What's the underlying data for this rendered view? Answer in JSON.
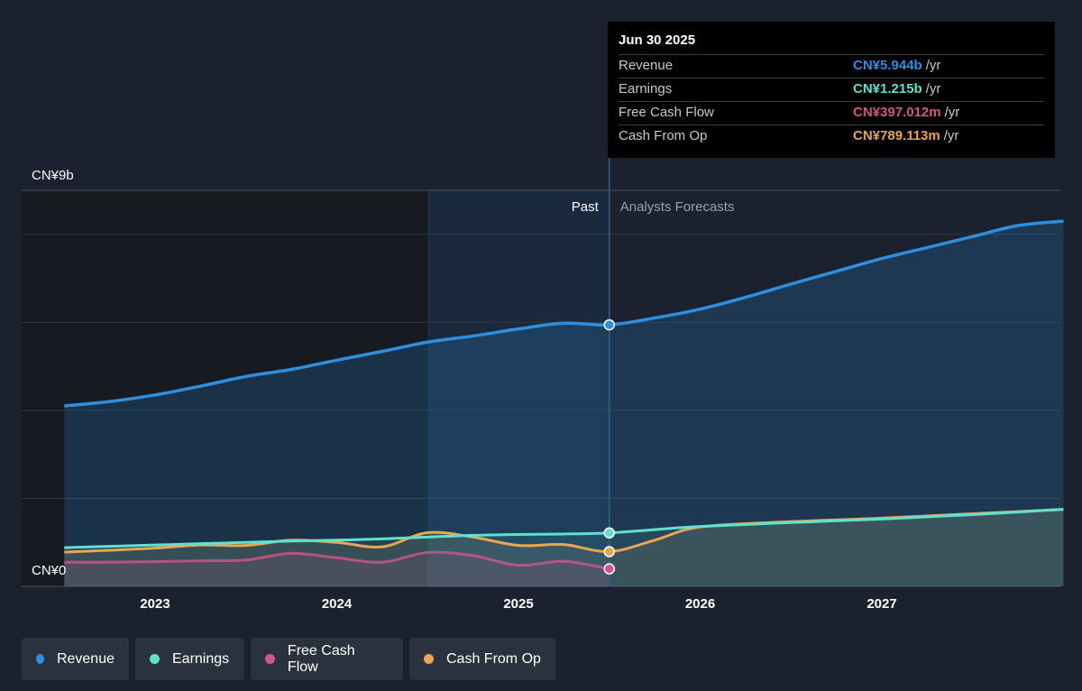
{
  "chart_data": {
    "type": "area",
    "y_axis": {
      "top_label": "CN¥9b",
      "bottom_label": "CN¥0",
      "ylim": [
        0,
        9
      ]
    },
    "x_axis": {
      "ticks": [
        "2023",
        "2024",
        "2025",
        "2026",
        "2027"
      ]
    },
    "regions": {
      "past_label": "Past",
      "forecast_label": "Analysts Forecasts"
    },
    "series": [
      {
        "name": "Revenue",
        "color": "#2d8fe0",
        "x": [
          2022.5,
          2022.75,
          2023.0,
          2023.25,
          2023.5,
          2023.75,
          2024.0,
          2024.25,
          2024.5,
          2024.75,
          2025.0,
          2025.25,
          2025.5,
          2025.75,
          2026.0,
          2026.25,
          2026.5,
          2026.75,
          2027.0,
          2027.25,
          2027.5,
          2027.75,
          2028.0
        ],
        "values": [
          4.1,
          4.2,
          4.35,
          4.55,
          4.77,
          4.93,
          5.14,
          5.34,
          5.55,
          5.69,
          5.85,
          5.98,
          5.944,
          6.1,
          6.3,
          6.57,
          6.87,
          7.16,
          7.45,
          7.7,
          7.95,
          8.2,
          8.3
        ]
      },
      {
        "name": "Earnings",
        "color": "#5ee1cd",
        "x": [
          2022.5,
          2022.75,
          2023.0,
          2023.25,
          2023.5,
          2023.75,
          2024.0,
          2024.25,
          2024.5,
          2024.75,
          2025.0,
          2025.25,
          2025.5,
          2025.75,
          2026.0,
          2026.5,
          2027.0,
          2027.5,
          2028.0
        ],
        "values": [
          0.88,
          0.91,
          0.94,
          0.97,
          1.0,
          1.03,
          1.05,
          1.08,
          1.12,
          1.16,
          1.18,
          1.19,
          1.215,
          1.29,
          1.36,
          1.45,
          1.53,
          1.63,
          1.75
        ]
      },
      {
        "name": "Free Cash Flow",
        "color": "#d2558a",
        "x": [
          2022.5,
          2022.75,
          2023.0,
          2023.25,
          2023.5,
          2023.75,
          2024.0,
          2024.25,
          2024.5,
          2024.75,
          2025.0,
          2025.25,
          2025.5
        ],
        "values": [
          0.55,
          0.55,
          0.56,
          0.58,
          0.6,
          0.75,
          0.65,
          0.55,
          0.77,
          0.7,
          0.48,
          0.57,
          0.397
        ]
      },
      {
        "name": "Cash From Op",
        "color": "#e9a74f",
        "x": [
          2022.5,
          2022.75,
          2023.0,
          2023.25,
          2023.5,
          2023.75,
          2024.0,
          2024.25,
          2024.5,
          2024.75,
          2025.0,
          2025.25,
          2025.5,
          2025.75,
          2026.0,
          2026.5,
          2027.0,
          2027.5,
          2028.0
        ],
        "values": [
          0.78,
          0.82,
          0.87,
          0.94,
          0.93,
          1.05,
          1.0,
          0.9,
          1.22,
          1.12,
          0.93,
          0.95,
          0.789,
          1.05,
          1.35,
          1.47,
          1.55,
          1.65,
          1.75
        ]
      }
    ],
    "tooltip": {
      "date": "Jun 30 2025",
      "rows": [
        {
          "label": "Revenue",
          "value": "CN¥5.944b",
          "unit": "/yr",
          "color": "#2d8fe0"
        },
        {
          "label": "Earnings",
          "value": "CN¥1.215b",
          "unit": "/yr",
          "color": "#5ee1cd"
        },
        {
          "label": "Free Cash Flow",
          "value": "CN¥397.012m",
          "unit": "/yr",
          "color": "#d2558a"
        },
        {
          "label": "Cash From Op",
          "value": "CN¥789.113m",
          "unit": "/yr",
          "color": "#e9a74f"
        }
      ]
    }
  },
  "legend": [
    {
      "label": "Revenue",
      "color": "#2d8fe0"
    },
    {
      "label": "Earnings",
      "color": "#5ee1cd"
    },
    {
      "label": "Free Cash Flow",
      "color": "#d2558a"
    },
    {
      "label": "Cash From Op",
      "color": "#e9a74f"
    }
  ]
}
